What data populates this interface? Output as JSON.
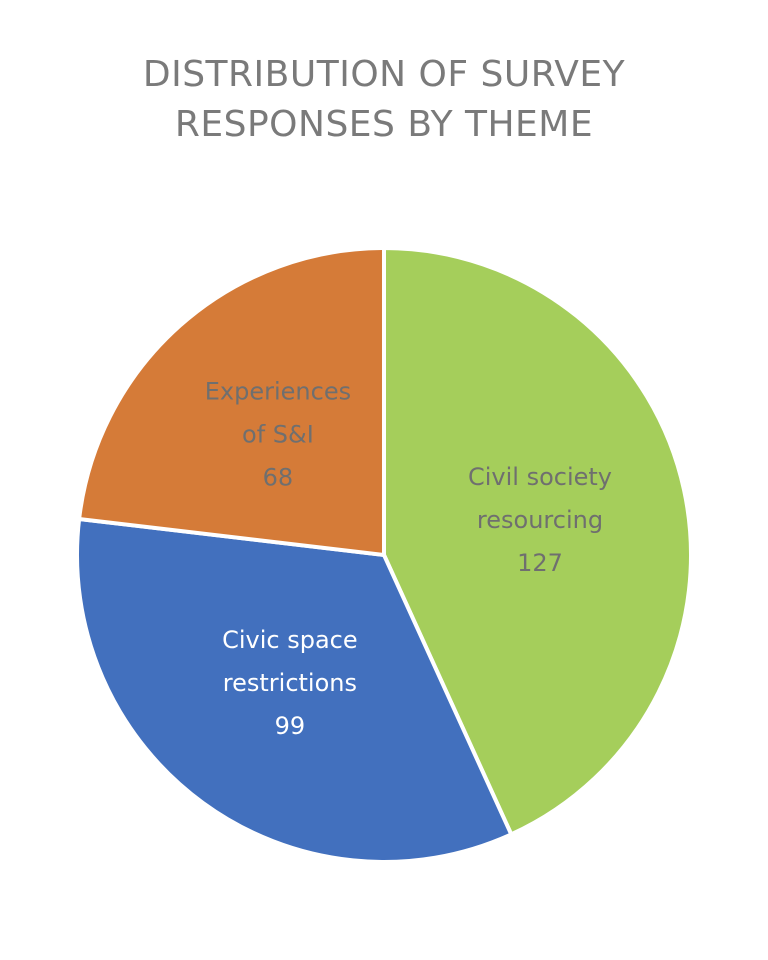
{
  "chart_data": {
    "type": "pie",
    "title": [
      "DISTRIBUTION OF SURVEY",
      "RESPONSES BY THEME"
    ],
    "slices": [
      {
        "label": [
          "Civil society",
          "resourcing"
        ],
        "value": 127,
        "value_label": "127",
        "color": "#a5ce5b",
        "text_color": "#6f6f6f"
      },
      {
        "label": [
          "Civic space",
          "restrictions"
        ],
        "value": 99,
        "value_label": "99",
        "color": "#4270be",
        "text_color": "#ffffff"
      },
      {
        "label": [
          "Experiences",
          "of S&I"
        ],
        "value": 68,
        "value_label": "68",
        "color": "#d57b38",
        "text_color": "#6f6f6f"
      }
    ],
    "start_angle_deg": 0,
    "direction": "clockwise",
    "legend": "none"
  }
}
